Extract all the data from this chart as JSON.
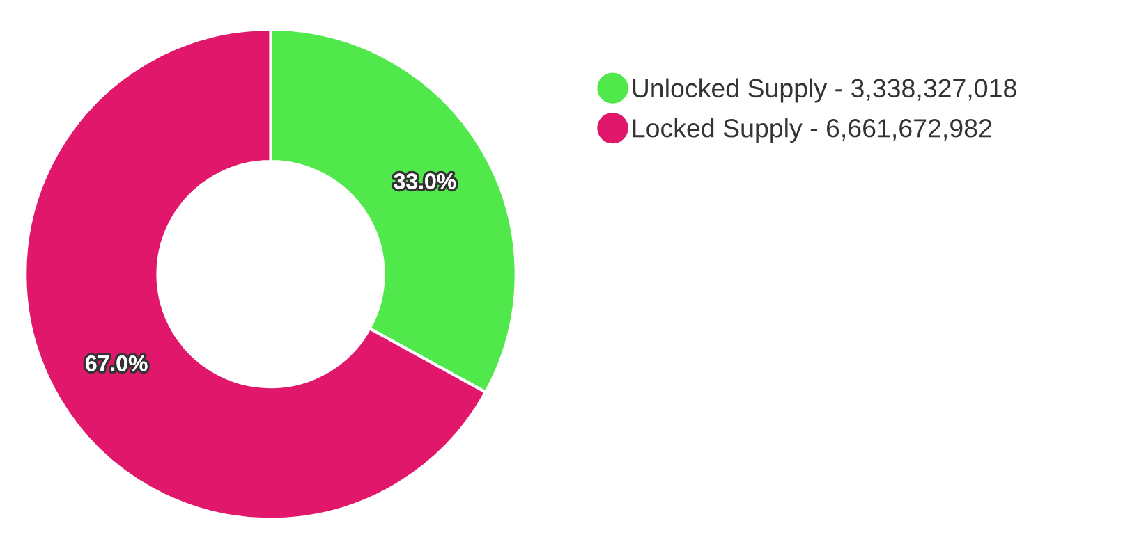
{
  "chart_data": {
    "type": "donut",
    "categories": [
      "Unlocked Supply - 3,338,327,018",
      "Locked Supply - 6,661,672,982"
    ],
    "values": [
      33.0,
      67.0
    ],
    "value_labels": [
      "33.0%",
      "67.0%"
    ],
    "colors": [
      "#50e84b",
      "#e0176a"
    ],
    "legend": "top right"
  }
}
